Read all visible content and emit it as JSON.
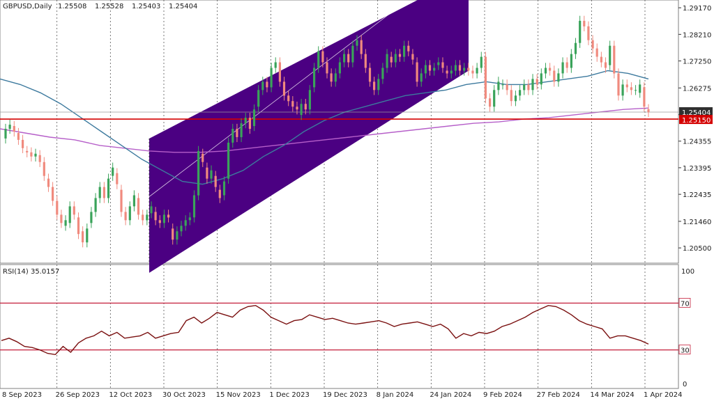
{
  "chart_data": [
    {
      "type": "candlestick",
      "header": {
        "symbol_timeframe": "GBPUSD,Daily",
        "open": "1.25508",
        "high": "1.25528",
        "low": "1.25403",
        "close": "1.25404"
      },
      "y_tick_labels": [
        "1.29170",
        "1.28210",
        "1.27250",
        "1.26275",
        "1.25404",
        "1.25150",
        "1.24355",
        "1.23395",
        "1.22435",
        "1.21460",
        "1.20500"
      ],
      "y_ticks": [
        1.2917,
        1.2821,
        1.2725,
        1.26275,
        1.2531,
        1.24355,
        1.23395,
        1.22435,
        1.2146,
        1.205
      ],
      "ylim": [
        1.2,
        1.294
      ],
      "current_price": {
        "label": "1.25404",
        "value": 1.25404,
        "color": "#2f2f2f"
      },
      "horizontal_level": {
        "label": "1.25150",
        "value": 1.2515,
        "color": "#d40000"
      },
      "x_tick_labels": [
        "8 Sep 2023",
        "26 Sep 2023",
        "12 Oct 2023",
        "30 Oct 2023",
        "15 Nov 2023",
        "1 Dec 2023",
        "19 Dec 2023",
        "8 Jan 2024",
        "24 Jan 2024",
        "9 Feb 2024",
        "27 Feb 2024",
        "14 Mar 2024",
        "1 Apr 2024"
      ],
      "candles": [
        [
          1.2445,
          1.248
        ],
        [
          1.248,
          1.2495
        ],
        [
          1.249,
          1.247
        ],
        [
          1.2465,
          1.244
        ],
        [
          1.244,
          1.241
        ],
        [
          1.24,
          1.2395
        ],
        [
          1.2395,
          1.238
        ],
        [
          1.238,
          1.239
        ],
        [
          1.2385,
          1.236
        ],
        [
          1.236,
          1.231
        ],
        [
          1.23,
          1.227
        ],
        [
          1.227,
          1.222
        ],
        [
          1.222,
          1.217
        ],
        [
          1.217,
          1.214
        ],
        [
          1.213,
          1.215
        ],
        [
          1.214,
          1.22
        ],
        [
          1.22,
          1.217
        ],
        [
          1.216,
          1.21
        ],
        [
          1.211,
          1.207
        ],
        [
          1.207,
          1.212
        ],
        [
          1.214,
          1.218
        ],
        [
          1.218,
          1.223
        ],
        [
          1.223,
          1.227
        ],
        [
          1.227,
          1.223
        ],
        [
          1.223,
          1.23
        ],
        [
          1.231,
          1.234
        ],
        [
          1.232,
          1.228
        ],
        [
          1.226,
          1.218
        ],
        [
          1.218,
          1.215
        ],
        [
          1.215,
          1.22
        ],
        [
          1.22,
          1.224
        ],
        [
          1.223,
          1.217
        ],
        [
          1.217,
          1.215
        ],
        [
          1.215,
          1.217
        ],
        [
          1.2175,
          1.22
        ],
        [
          1.218,
          1.215
        ],
        [
          1.215,
          1.214
        ],
        [
          1.214,
          1.217
        ],
        [
          1.217,
          1.216
        ],
        [
          1.212,
          1.208
        ],
        [
          1.208,
          1.211
        ],
        [
          1.211,
          1.213
        ],
        [
          1.213,
          1.215
        ],
        [
          1.215,
          1.216
        ],
        [
          1.216,
          1.224
        ],
        [
          1.224,
          1.24
        ],
        [
          1.239,
          1.236
        ],
        [
          1.234,
          1.23
        ],
        [
          1.23,
          1.233
        ],
        [
          1.231,
          1.227
        ],
        [
          1.226,
          1.223
        ],
        [
          1.224,
          1.229
        ],
        [
          1.23,
          1.243
        ],
        [
          1.243,
          1.248
        ],
        [
          1.248,
          1.245
        ],
        [
          1.245,
          1.25
        ],
        [
          1.25,
          1.252
        ],
        [
          1.252,
          1.248
        ],
        [
          1.249,
          1.255
        ],
        [
          1.256,
          1.262
        ],
        [
          1.262,
          1.265
        ],
        [
          1.265,
          1.263
        ],
        [
          1.263,
          1.27
        ],
        [
          1.27,
          1.272
        ],
        [
          1.272,
          1.265
        ],
        [
          1.265,
          1.26
        ],
        [
          1.26,
          1.258
        ],
        [
          1.258,
          1.256
        ],
        [
          1.256,
          1.255
        ],
        [
          1.253,
          1.257
        ],
        [
          1.257,
          1.255
        ],
        [
          1.255,
          1.262
        ],
        [
          1.263,
          1.27
        ],
        [
          1.27,
          1.276
        ],
        [
          1.276,
          1.272
        ],
        [
          1.272,
          1.268
        ],
        [
          1.268,
          1.265
        ],
        [
          1.265,
          1.268
        ],
        [
          1.268,
          1.272
        ],
        [
          1.272,
          1.275
        ],
        [
          1.275,
          1.272
        ],
        [
          1.272,
          1.278
        ],
        [
          1.278,
          1.28
        ],
        [
          1.28,
          1.275
        ],
        [
          1.275,
          1.27
        ],
        [
          1.27,
          1.265
        ],
        [
          1.265,
          1.262
        ],
        [
          1.262,
          1.266
        ],
        [
          1.266,
          1.27
        ],
        [
          1.27,
          1.275
        ],
        [
          1.274,
          1.272
        ],
        [
          1.272,
          1.275
        ],
        [
          1.275,
          1.274
        ],
        [
          1.274,
          1.278
        ],
        [
          1.278,
          1.276
        ],
        [
          1.275,
          1.273
        ],
        [
          1.272,
          1.265
        ],
        [
          1.265,
          1.268
        ],
        [
          1.268,
          1.271
        ],
        [
          1.271,
          1.269
        ],
        [
          1.269,
          1.27
        ],
        [
          1.271,
          1.272
        ],
        [
          1.272,
          1.27
        ],
        [
          1.269,
          1.268
        ],
        [
          1.268,
          1.269
        ],
        [
          1.269,
          1.271
        ],
        [
          1.271,
          1.269
        ],
        [
          1.269,
          1.27
        ],
        [
          1.27,
          1.269
        ],
        [
          1.269,
          1.268
        ],
        [
          1.268,
          1.27
        ],
        [
          1.27,
          1.274
        ],
        [
          1.274,
          1.259
        ],
        [
          1.259,
          1.256
        ],
        [
          1.256,
          1.262
        ],
        [
          1.262,
          1.265
        ],
        [
          1.264,
          1.264
        ],
        [
          1.264,
          1.262
        ],
        [
          1.262,
          1.258
        ],
        [
          1.258,
          1.26
        ],
        [
          1.26,
          1.262
        ],
        [
          1.262,
          1.264
        ],
        [
          1.264,
          1.262
        ],
        [
          1.262,
          1.266
        ],
        [
          1.266,
          1.264
        ],
        [
          1.264,
          1.268
        ],
        [
          1.268,
          1.27
        ],
        [
          1.27,
          1.269
        ],
        [
          1.269,
          1.265
        ],
        [
          1.265,
          1.268
        ],
        [
          1.268,
          1.272
        ],
        [
          1.272,
          1.27
        ],
        [
          1.27,
          1.275
        ],
        [
          1.275,
          1.279
        ],
        [
          1.279,
          1.287
        ],
        [
          1.287,
          1.285
        ],
        [
          1.285,
          1.28
        ],
        [
          1.28,
          1.277
        ],
        [
          1.277,
          1.274
        ],
        [
          1.274,
          1.272
        ],
        [
          1.272,
          1.27
        ],
        [
          1.271,
          1.278
        ],
        [
          1.278,
          1.268
        ],
        [
          1.268,
          1.26
        ],
        [
          1.26,
          1.264
        ],
        [
          1.264,
          1.263
        ],
        [
          1.263,
          1.262
        ],
        [
          1.262,
          1.262
        ],
        [
          1.261,
          1.264
        ],
        [
          1.263,
          1.256
        ],
        [
          1.2551,
          1.254
        ]
      ],
      "sma_blue": {
        "color": "#3d7a9e",
        "values": [
          1.266,
          1.264,
          1.261,
          1.257,
          1.252,
          1.247,
          1.242,
          1.237,
          1.233,
          1.229,
          1.228,
          1.23,
          1.233,
          1.238,
          1.242,
          1.247,
          1.251,
          1.254,
          1.256,
          1.258,
          1.26,
          1.261,
          1.262,
          1.264,
          1.265,
          1.264,
          1.264,
          1.265,
          1.266,
          1.267,
          1.269,
          1.268,
          1.266
        ]
      },
      "sma_purple": {
        "color": "#b65fc9",
        "values": [
          1.248,
          1.2465,
          1.245,
          1.244,
          1.242,
          1.241,
          1.24,
          1.2395,
          1.2395,
          1.24,
          1.241,
          1.242,
          1.243,
          1.244,
          1.245,
          1.246,
          1.247,
          1.248,
          1.249,
          1.25,
          1.2505,
          1.2515,
          1.252,
          1.253,
          1.254,
          1.255,
          1.2555
        ]
      },
      "regression_channel": {
        "color": "#4b0082"
      },
      "rsi": {
        "label": "RSI(14) 35.0157",
        "ylim": [
          0,
          100
        ],
        "levels": [
          {
            "value": 70,
            "label": "70"
          },
          {
            "value": 30,
            "label": "30"
          }
        ],
        "y_tick_labels": [
          "100",
          "0"
        ],
        "values": [
          38,
          40,
          37,
          33,
          32,
          30,
          27,
          26,
          33,
          28,
          36,
          40,
          42,
          46,
          42,
          45,
          40,
          41,
          42,
          45,
          40,
          42,
          44,
          45,
          55,
          58,
          53,
          57,
          62,
          60,
          58,
          64,
          67,
          68,
          64,
          58,
          55,
          52,
          55,
          56,
          60,
          58,
          56,
          57,
          55,
          53,
          52,
          53,
          54,
          55,
          53,
          50,
          52,
          53,
          54,
          52,
          50,
          52,
          48,
          40,
          44,
          42,
          45,
          44,
          46,
          50,
          52,
          55,
          58,
          62,
          65,
          68,
          67,
          64,
          60,
          55,
          52,
          50,
          48,
          40,
          42,
          42,
          40,
          38,
          35
        ]
      }
    }
  ]
}
